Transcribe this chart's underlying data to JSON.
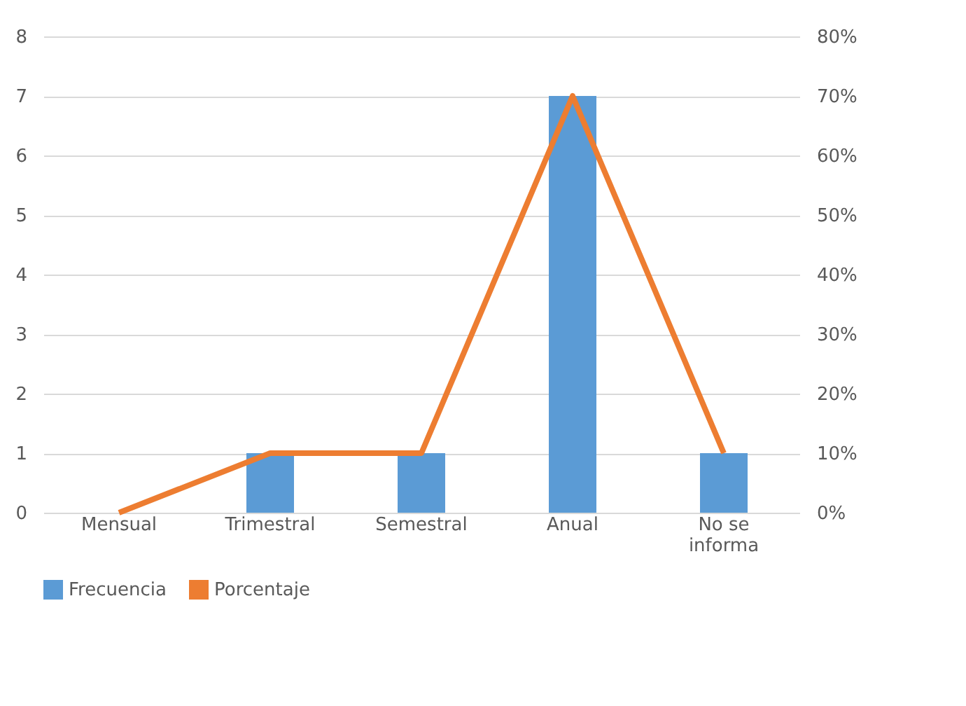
{
  "chart_data": {
    "type": "bar",
    "categories": [
      "Mensual",
      "Trimestral",
      "Semestral",
      "Anual",
      "No se informa"
    ],
    "series": [
      {
        "name": "Frecuencia",
        "color": "#5b9bd5",
        "values": [
          0,
          1,
          1,
          7,
          1
        ]
      },
      {
        "name": "Porcentaje",
        "type": "line",
        "axis": "y2",
        "color": "#ed7d31",
        "values": [
          0,
          10,
          10,
          70,
          10
        ]
      }
    ],
    "ylim": [
      0,
      8
    ],
    "yticks": [
      0,
      1,
      2,
      3,
      4,
      5,
      6,
      7,
      8
    ],
    "y2lim": [
      0,
      80
    ],
    "y2ticks": [
      {
        "value": 0,
        "label": "0%"
      },
      {
        "value": 10,
        "label": "10%"
      },
      {
        "value": 20,
        "label": "20%"
      },
      {
        "value": 30,
        "label": "30%"
      },
      {
        "value": 40,
        "label": "40%"
      },
      {
        "value": 50,
        "label": "50%"
      },
      {
        "value": 60,
        "label": "60%"
      },
      {
        "value": 70,
        "label": "70%"
      },
      {
        "value": 80,
        "label": "80%"
      }
    ],
    "grid": "y",
    "legend": "bottom",
    "marker": "none",
    "line_style": "solid"
  }
}
